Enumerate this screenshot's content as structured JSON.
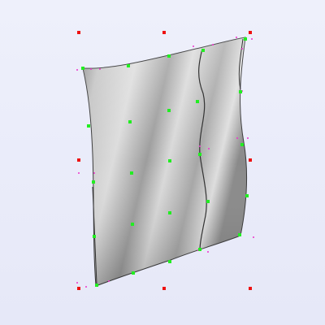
{
  "viewport": {
    "background": "#e9ebfa",
    "surface_color_light": "#e6e6e6",
    "surface_color_dark": "#8c8c8c",
    "control_point_color": "#22ee22",
    "cage_handle_color": "#ee1111",
    "knot_marker_color": "#ee33cc",
    "edge_color": "#3a3a3a"
  }
}
